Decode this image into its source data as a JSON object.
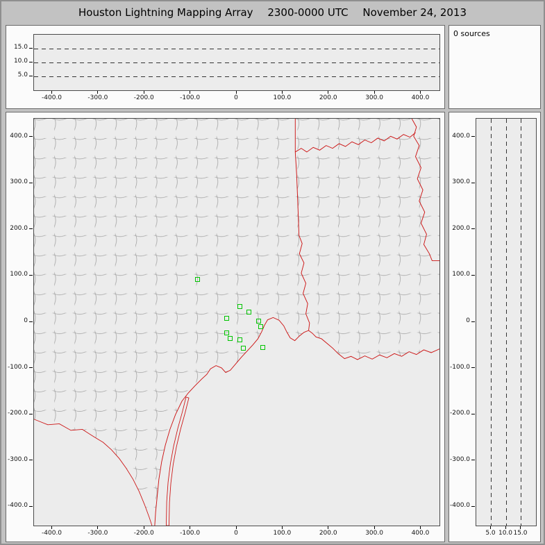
{
  "header": {
    "title": "Houston Lightning Mapping Array",
    "time_range": "2300-0000 UTC",
    "date": "November 24, 2013"
  },
  "sources_panel": {
    "count_label": "0 sources"
  },
  "colors": {
    "window_bg": "#c2c2c2",
    "plot_bg": "#ececec",
    "station_green": "#00c400",
    "state_border_red": "#cc1111",
    "county_gray": "#9c9c9c",
    "grid_dash": "#333333"
  },
  "chart_data": [
    {
      "id": "altitude_vs_east_west",
      "type": "scatter",
      "x_tick_labels": [
        "-400.0",
        "-300.0",
        "-200.0",
        "-100.0",
        "0",
        "100.0",
        "200.0",
        "300.0",
        "400.0"
      ],
      "x_tick_values": [
        -400,
        -300,
        -200,
        -100,
        0,
        100,
        200,
        300,
        400
      ],
      "xlim": [
        -440,
        440
      ],
      "y_tick_labels": [
        "15.0",
        "10.0",
        "5.0"
      ],
      "y_tick_values": [
        15,
        10,
        5
      ],
      "ylim": [
        0,
        20
      ],
      "y_gridlines": [
        5,
        10,
        15
      ],
      "grid": "dashed",
      "points": []
    },
    {
      "id": "plan_view_map",
      "type": "scatter",
      "x_tick_labels": [
        "-400.0",
        "-300.0",
        "-200.0",
        "-100.0",
        "0",
        "100.0",
        "200.0",
        "300.0",
        "400.0"
      ],
      "x_tick_values": [
        -400,
        -300,
        -200,
        -100,
        0,
        100,
        200,
        300,
        400
      ],
      "xlim": [
        -440,
        440
      ],
      "y_tick_labels": [
        "400.0",
        "300.0",
        "200.0",
        "100.0",
        "0",
        "-100.0",
        "-200.0",
        "-300.0",
        "-400.0"
      ],
      "y_tick_values": [
        400,
        300,
        200,
        100,
        0,
        -100,
        -200,
        -300,
        -400
      ],
      "ylim": [
        -440,
        440
      ],
      "stations_km": [
        [
          -85,
          92
        ],
        [
          7,
          34
        ],
        [
          27,
          22
        ],
        [
          -22,
          8
        ],
        [
          48,
          2
        ],
        [
          -22,
          -23
        ],
        [
          -15,
          -35
        ],
        [
          7,
          -38
        ],
        [
          52,
          -10
        ],
        [
          15,
          -57
        ],
        [
          57,
          -55
        ]
      ],
      "points": []
    },
    {
      "id": "altitude_vs_north_south",
      "type": "scatter",
      "x_tick_labels": [
        "5.0",
        "10.0",
        "15.0"
      ],
      "x_tick_values": [
        5,
        10,
        15
      ],
      "xlim": [
        0,
        20
      ],
      "x_gridlines": [
        5,
        10,
        15
      ],
      "y_tick_labels": [
        "400.0",
        "300.0",
        "200.0",
        "100.0",
        "0",
        "-100.0",
        "-200.0",
        "-300.0",
        "-400.0"
      ],
      "y_tick_values": [
        400,
        300,
        200,
        100,
        0,
        -100,
        -200,
        -300,
        -400
      ],
      "ylim": [
        -440,
        440
      ],
      "grid": "dashed",
      "points": []
    }
  ]
}
